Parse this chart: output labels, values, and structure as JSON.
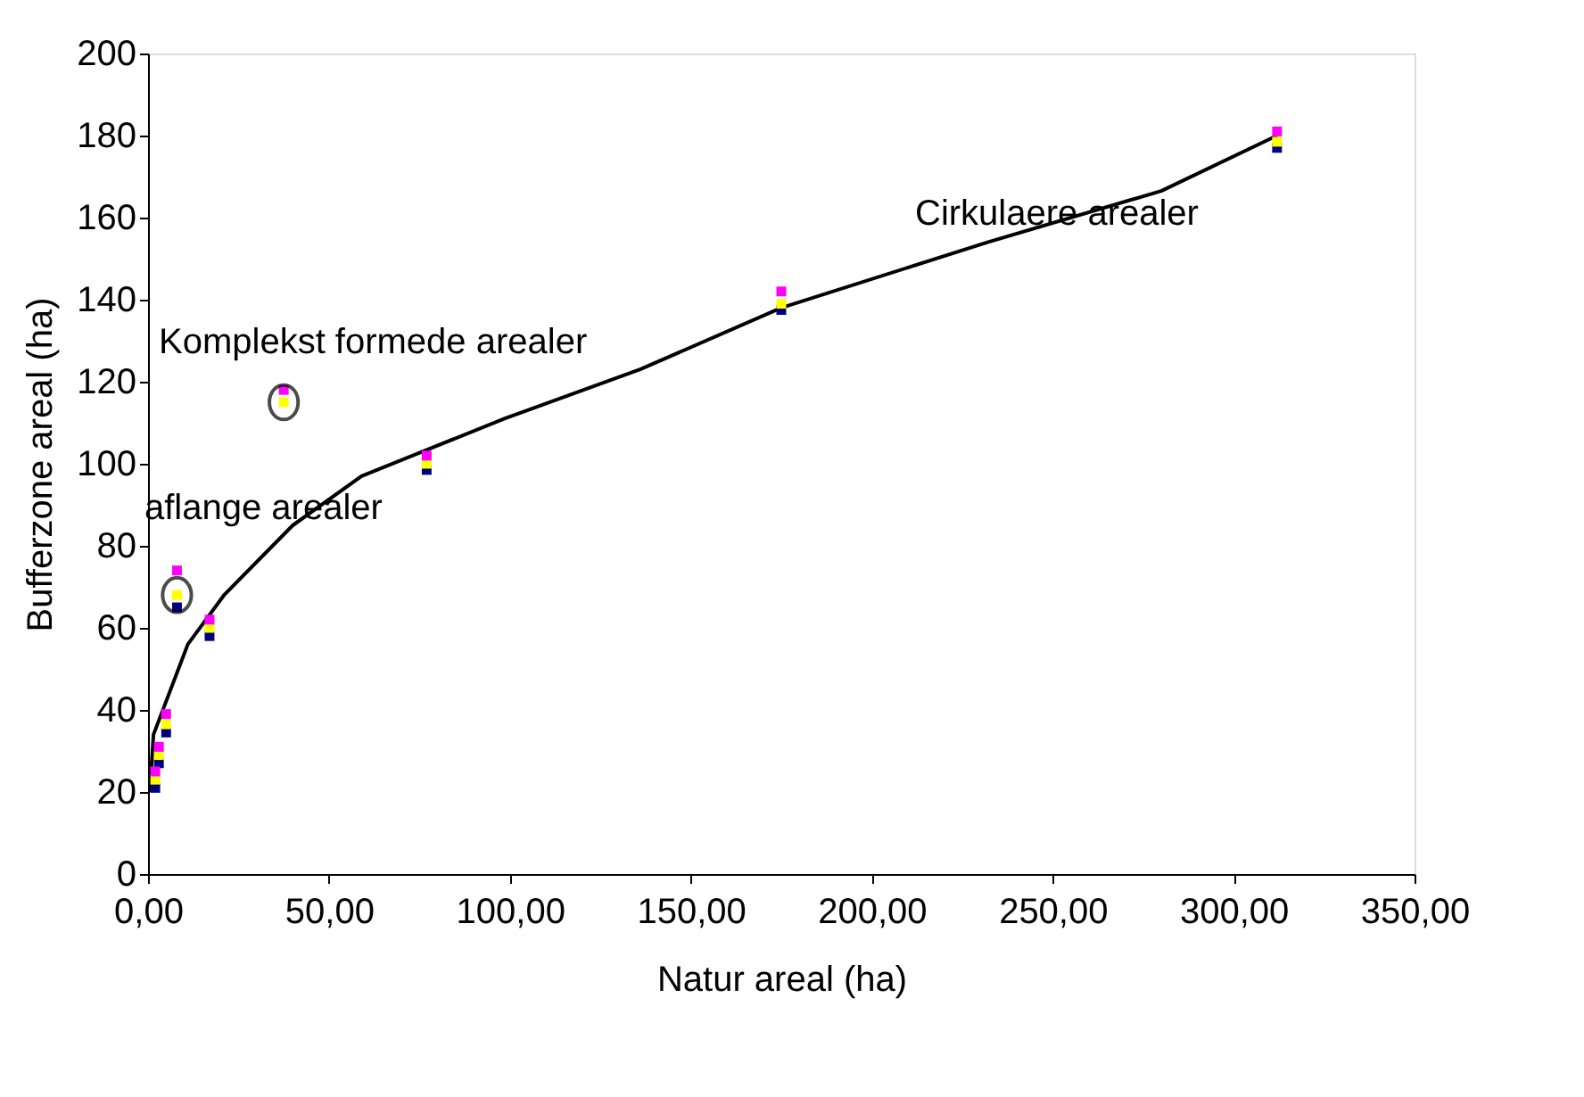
{
  "chart_data": {
    "type": "scatter",
    "xlabel": "Natur areal (ha)",
    "ylabel": "Bufferzone areal (ha)",
    "x": [
      2,
      3,
      5,
      8,
      17,
      37.5,
      77,
      175,
      312
    ],
    "series": [
      {
        "color": "#000080",
        "values": [
          21,
          27,
          34.5,
          65,
          58,
          null,
          98.5,
          137.5,
          177
        ]
      },
      {
        "color": "#ffff00",
        "values": [
          23,
          29,
          36.5,
          68,
          60,
          115,
          100,
          139,
          178.5
        ]
      },
      {
        "color": "#ff00ff",
        "values": [
          25,
          31,
          39,
          74,
          62,
          118,
          102,
          142,
          181
        ]
      },
      {
        "type": "line",
        "color": "#000000",
        "marker": "none",
        "x": [
          0.5,
          1.5,
          11,
          21,
          40,
          59,
          98.5,
          136,
          175,
          232,
          280,
          312
        ],
        "values": [
          20,
          34,
          56,
          68,
          85,
          97,
          111,
          123,
          138,
          154,
          166.5,
          180
        ]
      }
    ],
    "marker": "square",
    "xlim": [
      0,
      350
    ],
    "ylim": [
      0,
      200
    ],
    "xticks": [
      {
        "value": 0,
        "label": "0,00"
      },
      {
        "value": 50,
        "label": "50,00"
      },
      {
        "value": 100,
        "label": "100,00"
      },
      {
        "value": 150,
        "label": "150,00"
      },
      {
        "value": 200,
        "label": "200,00"
      },
      {
        "value": 250,
        "label": "250,00"
      },
      {
        "value": 300,
        "label": "300,00"
      },
      {
        "value": 350,
        "label": "350,00"
      }
    ],
    "yticks": [
      0,
      20,
      40,
      60,
      80,
      100,
      120,
      140,
      160,
      180,
      200
    ],
    "grid": false,
    "annotations": [
      "aflange arealer",
      "Komplekst formede arealer",
      "Cirkulaere arealer"
    ]
  }
}
